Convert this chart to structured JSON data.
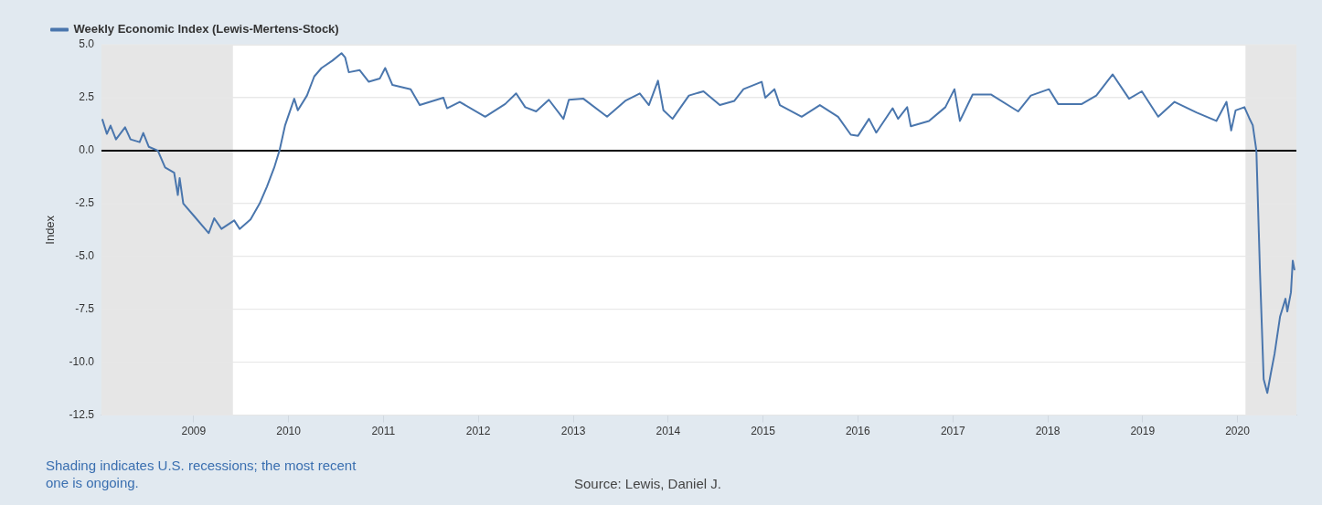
{
  "chart_data": {
    "type": "line",
    "ylabel": "Index",
    "legend": "top left",
    "grid": "y",
    "marker": "none",
    "line_style": "solid",
    "xlim": [
      "2008-01-12",
      "2020-08-15"
    ],
    "xticks": [
      "2009",
      "2010",
      "2011",
      "2012",
      "2013",
      "2014",
      "2015",
      "2016",
      "2017",
      "2018",
      "2019",
      "2020"
    ],
    "ylim": [
      -12.5,
      5
    ],
    "yticks": [
      {
        "value": 5,
        "label": "5.0"
      },
      {
        "value": 2.5,
        "label": "2.5"
      },
      {
        "value": 0,
        "label": "0.0"
      },
      {
        "value": -2.5,
        "label": "-2.5"
      },
      {
        "value": -5,
        "label": "-5.0"
      },
      {
        "value": -7.5,
        "label": "-7.5"
      },
      {
        "value": -10,
        "label": "-10.0"
      },
      {
        "value": -12.5,
        "label": "-12.5"
      }
    ],
    "bands": [
      {
        "axis": "x",
        "from": "2008-01-12",
        "to": "2009-06-01",
        "color": "#e6e6e6"
      },
      {
        "axis": "x",
        "from": "2020-02-01",
        "to": "2020-08-15",
        "color": "#e6e6e6"
      }
    ],
    "ref_lines": [
      {
        "axis": "y",
        "value": 0,
        "color": "#000000"
      }
    ],
    "annotations": [
      "Shading indicates U.S. recessions; the most recent one is ongoing.",
      "Source: Lewis, Daniel J."
    ],
    "series": [
      {
        "name": "Weekly Economic Index (Lewis-Mertens-Stock)",
        "color": "#4a76ad",
        "x": [
          "2008-01-15",
          "2008-02-02",
          "2008-02-16",
          "2008-03-08",
          "2008-04-12",
          "2008-05-03",
          "2008-06-07",
          "2008-06-21",
          "2008-07-12",
          "2008-08-16",
          "2008-09-13",
          "2008-10-18",
          "2008-11-01",
          "2008-11-08",
          "2008-11-22",
          "2009-01-03",
          "2009-02-28",
          "2009-03-21",
          "2009-04-18",
          "2009-06-06",
          "2009-06-27",
          "2009-08-08",
          "2009-09-12",
          "2009-10-10",
          "2009-11-07",
          "2009-11-28",
          "2009-12-19",
          "2010-01-23",
          "2010-02-06",
          "2010-03-13",
          "2010-04-10",
          "2010-05-08",
          "2010-06-19",
          "2010-07-24",
          "2010-08-07",
          "2010-08-21",
          "2010-10-02",
          "2010-11-06",
          "2010-12-18",
          "2011-01-08",
          "2011-02-05",
          "2011-04-16",
          "2011-05-21",
          "2011-08-20",
          "2011-09-03",
          "2011-10-22",
          "2012-01-28",
          "2012-04-14",
          "2012-05-26",
          "2012-06-30",
          "2012-08-11",
          "2012-09-29",
          "2012-11-24",
          "2012-12-15",
          "2013-02-09",
          "2013-05-11",
          "2013-07-20",
          "2013-09-14",
          "2013-10-19",
          "2013-11-23",
          "2013-12-14",
          "2014-01-18",
          "2014-03-22",
          "2014-05-17",
          "2014-07-19",
          "2014-09-13",
          "2014-10-18",
          "2014-12-27",
          "2015-01-10",
          "2015-02-14",
          "2015-03-07",
          "2015-05-30",
          "2015-08-08",
          "2015-10-17",
          "2015-12-05",
          "2016-01-02",
          "2016-02-13",
          "2016-03-12",
          "2016-05-14",
          "2016-06-04",
          "2016-07-09",
          "2016-07-23",
          "2016-10-01",
          "2016-12-03",
          "2017-01-07",
          "2017-01-28",
          "2017-03-18",
          "2017-05-27",
          "2017-09-09",
          "2017-10-28",
          "2018-01-06",
          "2018-02-10",
          "2018-05-12",
          "2018-07-07",
          "2018-09-08",
          "2018-11-10",
          "2018-12-29",
          "2019-03-02",
          "2019-05-04",
          "2019-07-27",
          "2019-10-12",
          "2019-11-20",
          "2019-12-08",
          "2019-12-25",
          "2020-01-28",
          "2020-02-15",
          "2020-02-29",
          "2020-03-14",
          "2020-03-28",
          "2020-04-11",
          "2020-04-25",
          "2020-05-09",
          "2020-05-23",
          "2020-06-13",
          "2020-07-04",
          "2020-07-11",
          "2020-07-25",
          "2020-08-01",
          "2020-08-08"
        ],
        "values": [
          1.49,
          0.79,
          1.18,
          0.53,
          1.1,
          0.53,
          0.4,
          0.83,
          0.18,
          0,
          -0.8,
          -1.05,
          -2.1,
          -1.3,
          -2.5,
          -3.1,
          -3.9,
          -3.2,
          -3.7,
          -3.3,
          -3.7,
          -3.25,
          -2.5,
          -1.7,
          -0.8,
          0.04,
          1.2,
          2.45,
          1.9,
          2.6,
          3.5,
          3.9,
          4.25,
          4.6,
          4.4,
          3.7,
          3.8,
          3.25,
          3.4,
          3.9,
          3.1,
          2.9,
          2.15,
          2.5,
          2.0,
          2.3,
          1.6,
          2.2,
          2.7,
          2.05,
          1.85,
          2.4,
          1.5,
          2.4,
          2.45,
          1.6,
          2.35,
          2.7,
          2.15,
          3.3,
          1.9,
          1.5,
          2.6,
          2.8,
          2.15,
          2.35,
          2.9,
          3.25,
          2.5,
          2.9,
          2.15,
          1.6,
          2.15,
          1.6,
          0.75,
          0.7,
          1.5,
          0.85,
          2.0,
          1.5,
          2.05,
          1.15,
          1.4,
          2.05,
          2.9,
          1.4,
          2.65,
          2.65,
          1.85,
          2.6,
          2.9,
          2.2,
          2.2,
          2.6,
          3.6,
          2.45,
          2.8,
          1.6,
          2.3,
          1.8,
          1.4,
          2.3,
          0.95,
          1.9,
          2.05,
          1.55,
          1.2,
          0,
          -5.8,
          -10.8,
          -11.45,
          -10.5,
          -9.6,
          -7.85,
          -7.0,
          -7.6,
          -6.7,
          -5.2,
          -5.65
        ]
      }
    ]
  }
}
